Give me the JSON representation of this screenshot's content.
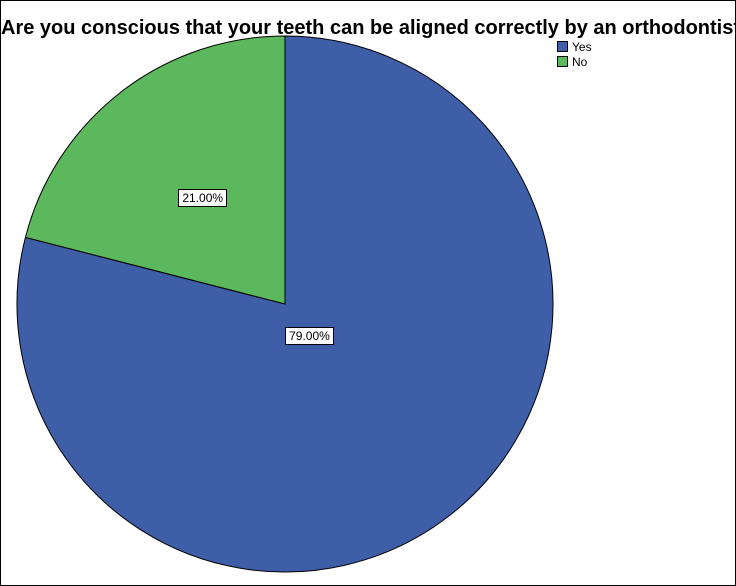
{
  "chart_data": {
    "type": "pie",
    "title": "Are you conscious that your teeth can be aligned correctly by an orthodontist?",
    "categories": [
      "Yes",
      "No"
    ],
    "values": [
      79.0,
      21.0
    ],
    "data_labels": [
      "79.00%",
      "21.00%"
    ],
    "colors": [
      "#3f5ea8",
      "#5cb85c"
    ],
    "legend_position": "top-right"
  }
}
